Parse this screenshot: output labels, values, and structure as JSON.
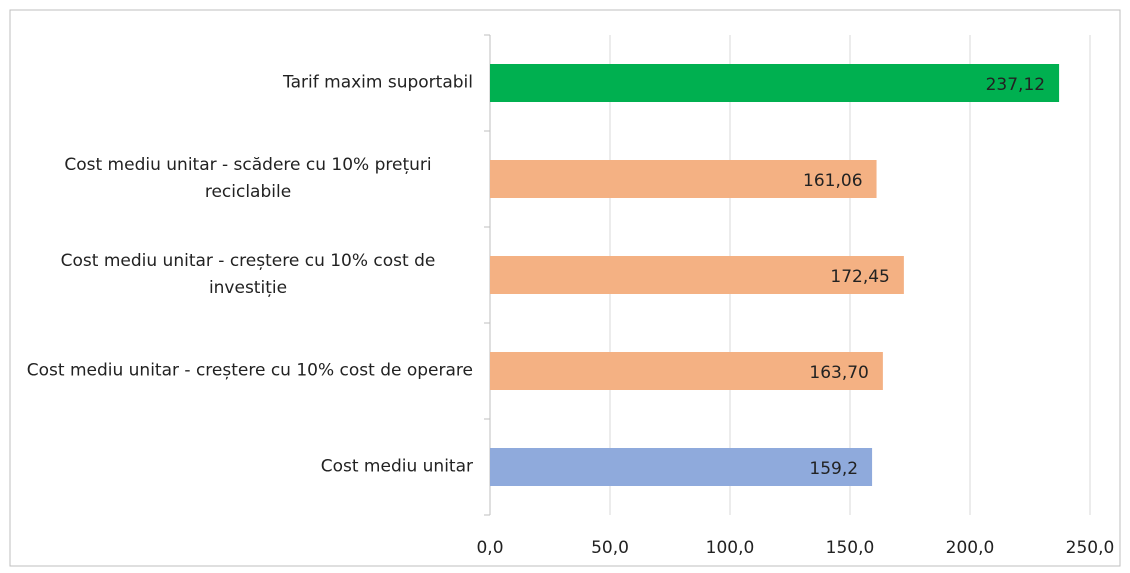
{
  "chart_data": {
    "type": "hbar",
    "categories": [
      "Tarif maxim suportabil",
      "Cost mediu unitar - scădere cu 10% prețuri reciclabile",
      "Cost mediu unitar - creștere cu 10% cost de investiție",
      "Cost mediu unitar - creștere cu 10% cost de operare",
      "Cost mediu unitar"
    ],
    "values": [
      237.12,
      161.06,
      172.45,
      163.7,
      159.2
    ],
    "value_labels": [
      "237,12",
      "161,06",
      "172,45",
      "163,70",
      "159,2"
    ],
    "colors": [
      "#00b050",
      "#f4b183",
      "#f4b183",
      "#f4b183",
      "#8faadc"
    ],
    "xlim": [
      0,
      250
    ],
    "xticks": [
      {
        "value": 0,
        "label": "0,0"
      },
      {
        "value": 50,
        "label": "50,0"
      },
      {
        "value": 100,
        "label": "100,0"
      },
      {
        "value": 150,
        "label": "150,0"
      },
      {
        "value": 200,
        "label": "200,0"
      },
      {
        "value": 250,
        "label": "250,0"
      }
    ],
    "grid": true
  }
}
